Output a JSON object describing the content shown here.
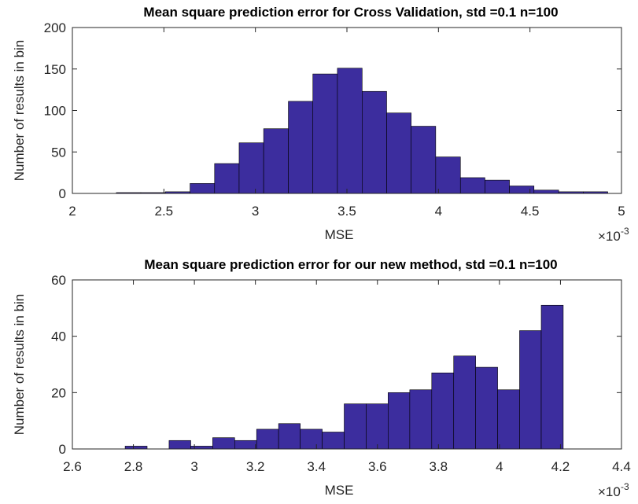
{
  "chart_data": [
    {
      "type": "histogram",
      "title": "Mean square prediction error for Cross Validation, std =0.1 n=100",
      "xlabel": "MSE",
      "ylabel": "Number of results in bin",
      "x_multiplier": "×10",
      "x_exponent": "-3",
      "bins": [
        2.24,
        2.374,
        2.508,
        2.643,
        2.777,
        2.911,
        3.045,
        3.18,
        3.314,
        3.448,
        3.583,
        3.717,
        3.851,
        3.985,
        4.12,
        4.254,
        4.388,
        4.522,
        4.657,
        4.791,
        4.925
      ],
      "values": [
        1,
        1,
        2,
        12,
        36,
        61,
        78,
        111,
        144,
        151,
        123,
        97,
        81,
        44,
        19,
        16,
        9,
        4,
        2,
        2
      ],
      "color": "#3c2d9e",
      "xlim": [
        2,
        5
      ],
      "xticks": [
        2,
        2.5,
        3,
        3.5,
        4,
        4.5,
        5
      ],
      "ylim": [
        0,
        200
      ],
      "yticks": [
        0,
        50,
        100,
        150,
        200
      ]
    },
    {
      "type": "histogram",
      "title": "Mean square prediction error for our new method, std =0.1 n=100",
      "xlabel": "MSE",
      "ylabel": "Number of results in bin",
      "x_multiplier": "×10",
      "x_exponent": "-3",
      "bins": [
        2.773,
        2.845,
        2.917,
        2.988,
        3.06,
        3.132,
        3.204,
        3.276,
        3.347,
        3.419,
        3.491,
        3.563,
        3.635,
        3.706,
        3.778,
        3.85,
        3.922,
        3.994,
        4.066,
        4.137,
        4.209
      ],
      "values": [
        1,
        0,
        3,
        1,
        4,
        3,
        7,
        9,
        7,
        6,
        16,
        16,
        20,
        21,
        27,
        33,
        29,
        21,
        42,
        51
      ],
      "color": "#3c2d9e",
      "xlim": [
        2.6,
        4.4
      ],
      "xticks": [
        2.6,
        2.8,
        3,
        3.2,
        3.4,
        3.6,
        3.8,
        4,
        4.2,
        4.4
      ],
      "ylim": [
        0,
        60
      ],
      "yticks": [
        0,
        20,
        40,
        60
      ]
    }
  ]
}
